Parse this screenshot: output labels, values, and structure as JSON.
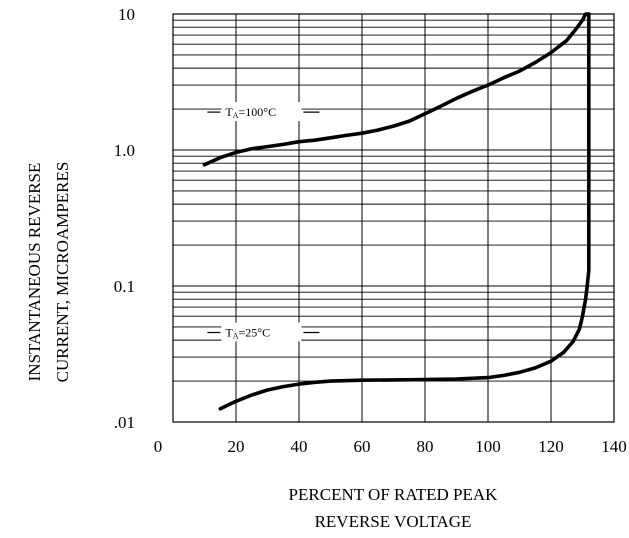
{
  "chart_data": {
    "type": "line",
    "title": "",
    "xlabel_lines": [
      "PERCENT OF RATED PEAK",
      "REVERSE VOLTAGE"
    ],
    "ylabel_lines": [
      "INSTANTANEOUS REVERSE",
      "CURRENT, MICROAMPERES"
    ],
    "x_scale": "linear",
    "y_scale": "log",
    "xlim": [
      0,
      140
    ],
    "ylim": [
      0.01,
      10
    ],
    "x_ticks": [
      {
        "value": 0,
        "label": "0"
      },
      {
        "value": 20,
        "label": "20"
      },
      {
        "value": 40,
        "label": "40"
      },
      {
        "value": 60,
        "label": "60"
      },
      {
        "value": 80,
        "label": "80"
      },
      {
        "value": 100,
        "label": "100"
      },
      {
        "value": 120,
        "label": "120"
      },
      {
        "value": 140,
        "label": "140"
      }
    ],
    "y_ticks": [
      {
        "value": 10,
        "label": "10"
      },
      {
        "value": 1,
        "label": "1.0"
      },
      {
        "value": 0.1,
        "label": "0.1"
      },
      {
        "value": 0.01,
        "label": ".01"
      }
    ],
    "grid": true,
    "line_color": "#000000",
    "series": [
      {
        "annotation": {
          "main": "T",
          "sub": "A",
          "rest": "=100°C"
        },
        "x": [
          10,
          15,
          20,
          25,
          30,
          35,
          40,
          45,
          50,
          55,
          60,
          65,
          70,
          75,
          80,
          85,
          90,
          95,
          100,
          105,
          110,
          115,
          120,
          125,
          128,
          130,
          131,
          132
        ],
        "y": [
          0.78,
          0.88,
          0.96,
          1.02,
          1.06,
          1.1,
          1.15,
          1.18,
          1.23,
          1.28,
          1.33,
          1.4,
          1.5,
          1.63,
          1.85,
          2.1,
          2.4,
          2.7,
          3.0,
          3.4,
          3.8,
          4.4,
          5.2,
          6.4,
          7.8,
          9.0,
          10.0,
          10.0
        ]
      },
      {
        "annotation": {
          "main": "T",
          "sub": "A",
          "rest": "=25°C"
        },
        "x": [
          15,
          20,
          25,
          30,
          35,
          40,
          45,
          50,
          60,
          70,
          80,
          90,
          100,
          105,
          110,
          115,
          120,
          124,
          127,
          129,
          130,
          131,
          131.5,
          132,
          132,
          132
        ],
        "y": [
          0.0125,
          0.0142,
          0.0158,
          0.0172,
          0.0182,
          0.019,
          0.0196,
          0.02,
          0.0203,
          0.0204,
          0.0205,
          0.0207,
          0.0212,
          0.022,
          0.0232,
          0.025,
          0.028,
          0.0325,
          0.039,
          0.048,
          0.06,
          0.08,
          0.1,
          0.13,
          1.0,
          10.0
        ]
      }
    ]
  }
}
